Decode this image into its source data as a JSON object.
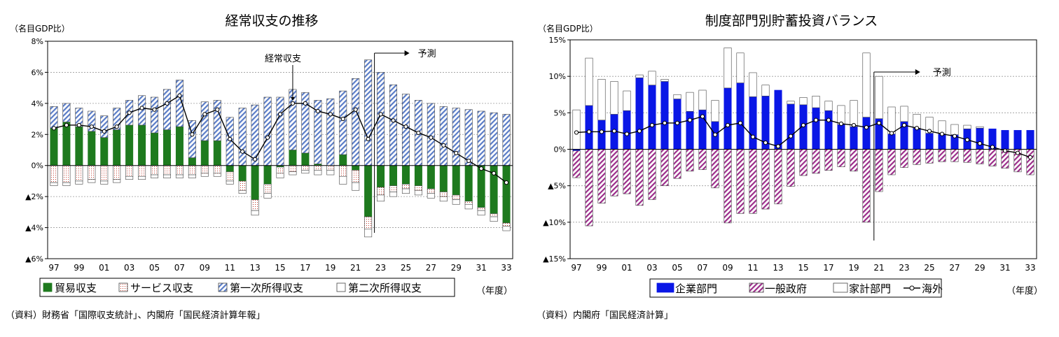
{
  "chart_data": [
    {
      "type": "bar",
      "stacked": true,
      "title": "経常収支の推移",
      "ylabel": "（名目GDP比）",
      "xunit": "（年度）",
      "source": "（資料）財務省「国際収支統計」、内閣府「国民経済計算年報」",
      "ylim": [
        -6,
        8
      ],
      "yticks": [
        8,
        6,
        4,
        2,
        0,
        -2,
        -4,
        -6
      ],
      "ytick_labels": [
        "8%",
        "6%",
        "4%",
        "2%",
        "0%",
        "▲2%",
        "▲4%",
        "▲6%"
      ],
      "categories": [
        "97",
        "98",
        "99",
        "00",
        "01",
        "02",
        "03",
        "04",
        "05",
        "06",
        "07",
        "08",
        "09",
        "10",
        "11",
        "12",
        "13",
        "14",
        "15",
        "16",
        "17",
        "18",
        "19",
        "20",
        "21",
        "22",
        "23",
        "24",
        "25",
        "26",
        "27",
        "28",
        "29",
        "30",
        "31",
        "32",
        "33"
      ],
      "xtick_labels": [
        "97",
        "99",
        "01",
        "03",
        "05",
        "07",
        "09",
        "11",
        "13",
        "15",
        "17",
        "19",
        "21",
        "23",
        "25",
        "27",
        "29",
        "31",
        "33"
      ],
      "series": [
        {
          "name": "貿易収支",
          "color": "#1e7a1e",
          "pattern": "solid",
          "values": [
            2.4,
            2.8,
            2.5,
            2.2,
            1.8,
            2.3,
            2.6,
            2.6,
            2.1,
            2.3,
            2.5,
            0.5,
            1.6,
            1.6,
            -0.4,
            -1.0,
            -2.2,
            -1.2,
            -0.1,
            1.0,
            0.8,
            0.1,
            0.0,
            0.7,
            -0.3,
            -3.3,
            -1.4,
            -1.3,
            -1.2,
            -1.3,
            -1.5,
            -1.7,
            -1.9,
            -2.3,
            -2.7,
            -3.1,
            -3.7
          ]
        },
        {
          "name": "サービス収支",
          "color": "#c0392b",
          "pattern": "dots",
          "values": [
            -1.1,
            -1.1,
            -1.0,
            -0.9,
            -1.0,
            -0.9,
            -0.7,
            -0.7,
            -0.6,
            -0.6,
            -0.6,
            -0.6,
            -0.5,
            -0.5,
            -0.6,
            -0.6,
            -0.7,
            -0.6,
            -0.4,
            -0.4,
            -0.3,
            -0.3,
            -0.3,
            -0.7,
            -0.8,
            -0.8,
            -0.5,
            -0.4,
            -0.3,
            -0.3,
            -0.3,
            -0.3,
            -0.3,
            -0.2,
            -0.2,
            -0.2,
            -0.2
          ]
        },
        {
          "name": "第一次所得収支",
          "color": "#4a6fb8",
          "pattern": "hatch",
          "values": [
            1.4,
            1.2,
            1.2,
            1.3,
            1.4,
            1.4,
            1.6,
            1.9,
            2.3,
            2.6,
            3.0,
            2.4,
            2.5,
            2.6,
            3.1,
            3.7,
            3.9,
            4.4,
            4.4,
            3.9,
            3.9,
            4.1,
            4.3,
            4.1,
            5.6,
            6.8,
            6.0,
            5.2,
            4.6,
            4.2,
            4.0,
            3.8,
            3.7,
            3.6,
            3.5,
            3.4,
            3.3
          ]
        },
        {
          "name": "第二次所得収支",
          "color": "#ffffff",
          "pattern": "empty",
          "values": [
            -0.2,
            -0.2,
            -0.2,
            -0.2,
            -0.2,
            -0.2,
            -0.2,
            -0.2,
            -0.2,
            -0.2,
            -0.2,
            -0.2,
            -0.2,
            -0.2,
            -0.2,
            -0.2,
            -0.3,
            -0.3,
            -0.3,
            -0.2,
            -0.2,
            -0.3,
            -0.3,
            -0.5,
            -0.5,
            -0.5,
            -0.4,
            -0.3,
            -0.3,
            -0.3,
            -0.3,
            -0.3,
            -0.3,
            -0.3,
            -0.3,
            -0.3,
            -0.3
          ]
        }
      ],
      "line": {
        "name": "経常収支",
        "values": [
          2.4,
          2.6,
          2.6,
          2.5,
          2.2,
          2.5,
          3.4,
          3.7,
          3.6,
          4.0,
          4.5,
          2.0,
          3.3,
          3.6,
          1.7,
          0.9,
          0.4,
          1.8,
          3.3,
          4.0,
          4.0,
          3.5,
          3.3,
          3.0,
          3.6,
          1.7,
          3.3,
          2.9,
          2.5,
          2.1,
          1.8,
          1.3,
          0.8,
          0.3,
          -0.2,
          -0.5,
          -1.1
        ]
      },
      "annotations": [
        {
          "text": "経常収支",
          "at": "16",
          "value": 4.0
        },
        {
          "text": "予測",
          "at": "23"
        }
      ]
    },
    {
      "type": "bar",
      "stacked": true,
      "title": "制度部門別貯蓄投資バランス",
      "ylabel": "（名目GDP比）",
      "xunit": "（年度）",
      "source": "（資料）内閣府「国民経済計算」",
      "ylim": [
        -15,
        15
      ],
      "yticks": [
        15,
        10,
        5,
        0,
        -5,
        -10,
        -15
      ],
      "ytick_labels": [
        "15%",
        "10%",
        "5%",
        "0%",
        "▲5%",
        "▲10%",
        "▲15%"
      ],
      "categories": [
        "97",
        "98",
        "99",
        "00",
        "01",
        "02",
        "03",
        "04",
        "05",
        "06",
        "07",
        "08",
        "09",
        "10",
        "11",
        "12",
        "13",
        "14",
        "15",
        "16",
        "17",
        "18",
        "19",
        "20",
        "21",
        "22",
        "23",
        "24",
        "25",
        "26",
        "27",
        "28",
        "29",
        "30",
        "31",
        "32",
        "33"
      ],
      "xtick_labels": [
        "97",
        "99",
        "01",
        "03",
        "05",
        "07",
        "09",
        "11",
        "13",
        "15",
        "17",
        "19",
        "21",
        "23",
        "25",
        "27",
        "29",
        "31",
        "33"
      ],
      "series": [
        {
          "name": "企業部門",
          "color": "#0a17e6",
          "pattern": "solid",
          "values": [
            -0.2,
            6.0,
            4.0,
            4.8,
            5.3,
            9.8,
            8.8,
            9.3,
            6.9,
            5.2,
            5.4,
            3.8,
            8.4,
            9.1,
            7.2,
            7.3,
            8.1,
            6.2,
            6.1,
            5.7,
            5.3,
            3.4,
            3.1,
            4.4,
            4.2,
            2.1,
            3.8,
            2.9,
            2.2,
            2.1,
            2.0,
            2.8,
            2.9,
            2.8,
            2.6,
            2.6,
            2.6
          ]
        },
        {
          "name": "一般政府",
          "color": "#9b2d8a",
          "pattern": "hatch",
          "values": [
            -3.7,
            -10.5,
            -7.4,
            -6.4,
            -6.1,
            -7.7,
            -6.9,
            -5.0,
            -4.0,
            -3.0,
            -2.8,
            -5.3,
            -10.1,
            -8.8,
            -8.8,
            -8.2,
            -7.5,
            -5.1,
            -3.6,
            -3.3,
            -2.9,
            -2.4,
            -3.0,
            -10.0,
            -5.8,
            -3.5,
            -2.5,
            -2.1,
            -1.9,
            -1.7,
            -1.7,
            -1.8,
            -2.0,
            -2.3,
            -2.6,
            -3.1,
            -3.5
          ]
        },
        {
          "name": "家計部門",
          "color": "#ffffff",
          "pattern": "empty",
          "values": [
            5.4,
            6.5,
            5.6,
            4.5,
            2.7,
            0.4,
            1.9,
            0.3,
            0.6,
            2.6,
            2.7,
            2.9,
            5.5,
            4.1,
            3.3,
            1.5,
            0.0,
            0.4,
            1.0,
            1.6,
            1.3,
            2.6,
            3.6,
            8.8,
            5.8,
            3.7,
            2.1,
            1.9,
            2.2,
            1.8,
            1.4,
            0.5,
            0.2,
            0.0,
            0.0,
            0.0,
            0.0
          ]
        },
        {
          "name": "海外",
          "color": "#000000",
          "pattern": "line",
          "values": [
            2.3,
            2.4,
            2.4,
            2.5,
            2.1,
            2.5,
            3.3,
            3.6,
            3.6,
            4.0,
            4.5,
            2.0,
            3.3,
            3.6,
            1.7,
            0.9,
            0.4,
            1.8,
            3.3,
            4.0,
            4.0,
            3.5,
            3.3,
            3.0,
            3.6,
            2.2,
            3.3,
            2.9,
            2.5,
            2.1,
            1.8,
            1.3,
            0.8,
            0.3,
            -0.2,
            -0.5,
            -1.1
          ]
        }
      ],
      "annotations": [
        {
          "text": "予測",
          "at": "21"
        }
      ]
    }
  ]
}
